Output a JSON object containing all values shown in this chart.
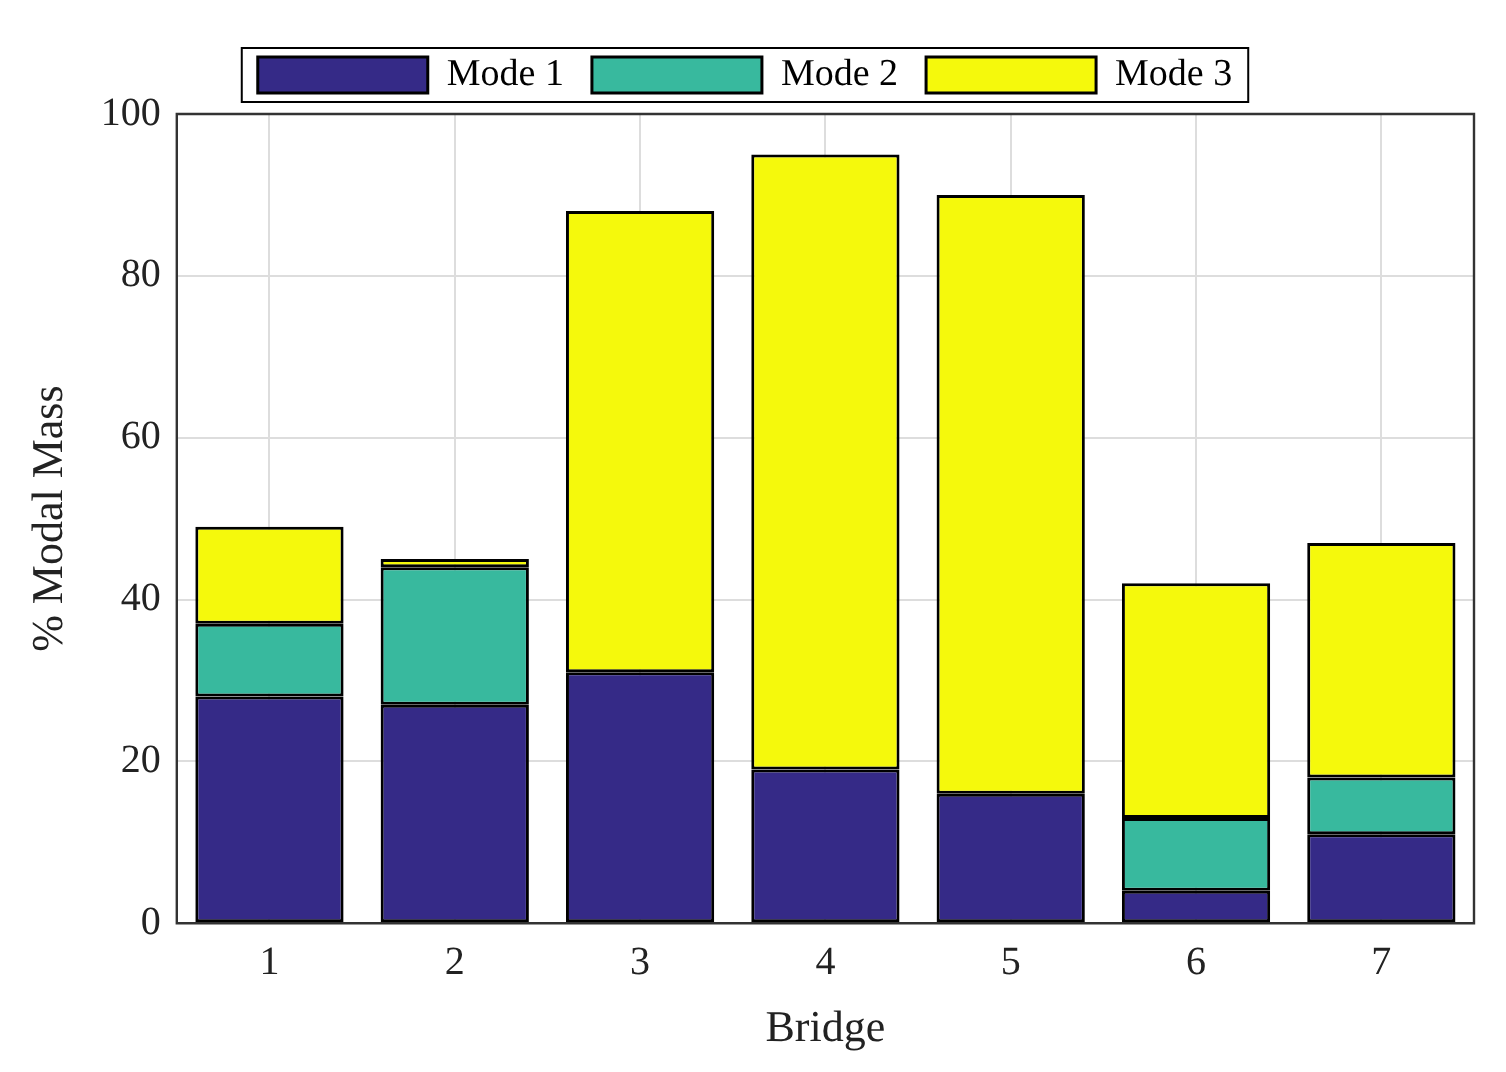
{
  "chart_data": {
    "type": "bar",
    "xlabel": "Bridge",
    "ylabel": "% Modal Mass",
    "categories": [
      "1",
      "2",
      "3",
      "4",
      "5",
      "6",
      "7"
    ],
    "stacked": true,
    "series": [
      {
        "name": "Mode 1",
        "color": "#352a87",
        "values": [
          28,
          27,
          31,
          19,
          16,
          4,
          11
        ]
      },
      {
        "name": "Mode 2",
        "color": "#38b99e",
        "values": [
          9,
          17,
          0,
          0,
          0,
          9,
          7
        ]
      },
      {
        "name": "Mode 3",
        "color": "#f5f90c",
        "values": [
          12,
          1,
          57,
          76,
          74,
          29,
          29
        ]
      }
    ],
    "ylim": [
      0,
      100
    ],
    "yticks": [
      0,
      20,
      40,
      60,
      80,
      100
    ],
    "grid": true,
    "legend": "top"
  }
}
